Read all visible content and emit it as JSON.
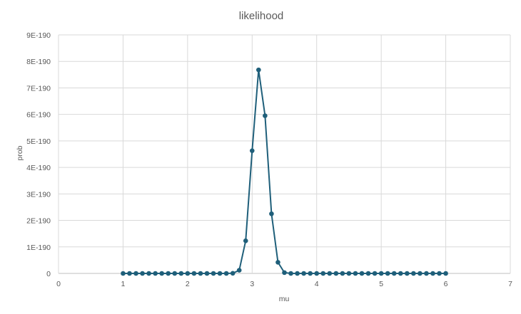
{
  "chart_data": {
    "type": "scatter",
    "title": "likelihood",
    "xlabel": "mu",
    "ylabel": "prob",
    "xlim": [
      0,
      7
    ],
    "ylim": [
      0,
      9e-190
    ],
    "x_ticks": [
      "0",
      "1",
      "2",
      "3",
      "4",
      "5",
      "6",
      "7"
    ],
    "y_ticks": [
      "0",
      "1E-190",
      "2E-190",
      "3E-190",
      "4E-190",
      "5E-190",
      "6E-190",
      "7E-190",
      "8E-190",
      "9E-190"
    ],
    "grid": true,
    "legend": "none",
    "line_color": "#1f5f7a",
    "grid_color": "#d9d9d9",
    "series": [
      {
        "x": [
          1.0,
          1.1,
          1.2,
          1.3,
          1.4,
          1.5,
          1.6,
          1.7,
          1.8,
          1.9,
          2.0,
          2.1,
          2.2,
          2.3,
          2.4,
          2.5,
          2.6,
          2.7,
          2.8,
          2.9,
          3.0,
          3.1,
          3.2,
          3.3,
          3.4,
          3.5,
          3.6,
          3.7,
          3.8,
          3.9,
          4.0,
          4.1,
          4.2,
          4.3,
          4.4,
          4.5,
          4.6,
          4.7,
          4.8,
          4.9,
          5.0,
          5.1,
          5.2,
          5.3,
          5.4,
          5.5,
          5.6,
          5.7,
          5.8,
          5.9,
          6.0
        ],
        "y": [
          0,
          0,
          0,
          0,
          0,
          0,
          0,
          0,
          0,
          0,
          0,
          0,
          0,
          0,
          0,
          0,
          0,
          5e-193,
          1.2e-191,
          1.23e-190,
          4.63e-190,
          7.68e-190,
          5.95e-190,
          2.25e-190,
          4.2e-191,
          3e-192,
          0,
          0,
          0,
          0,
          0,
          0,
          0,
          0,
          0,
          0,
          0,
          0,
          0,
          0,
          0,
          0,
          0,
          0,
          0,
          0,
          0,
          0,
          0,
          0,
          0
        ]
      }
    ]
  }
}
